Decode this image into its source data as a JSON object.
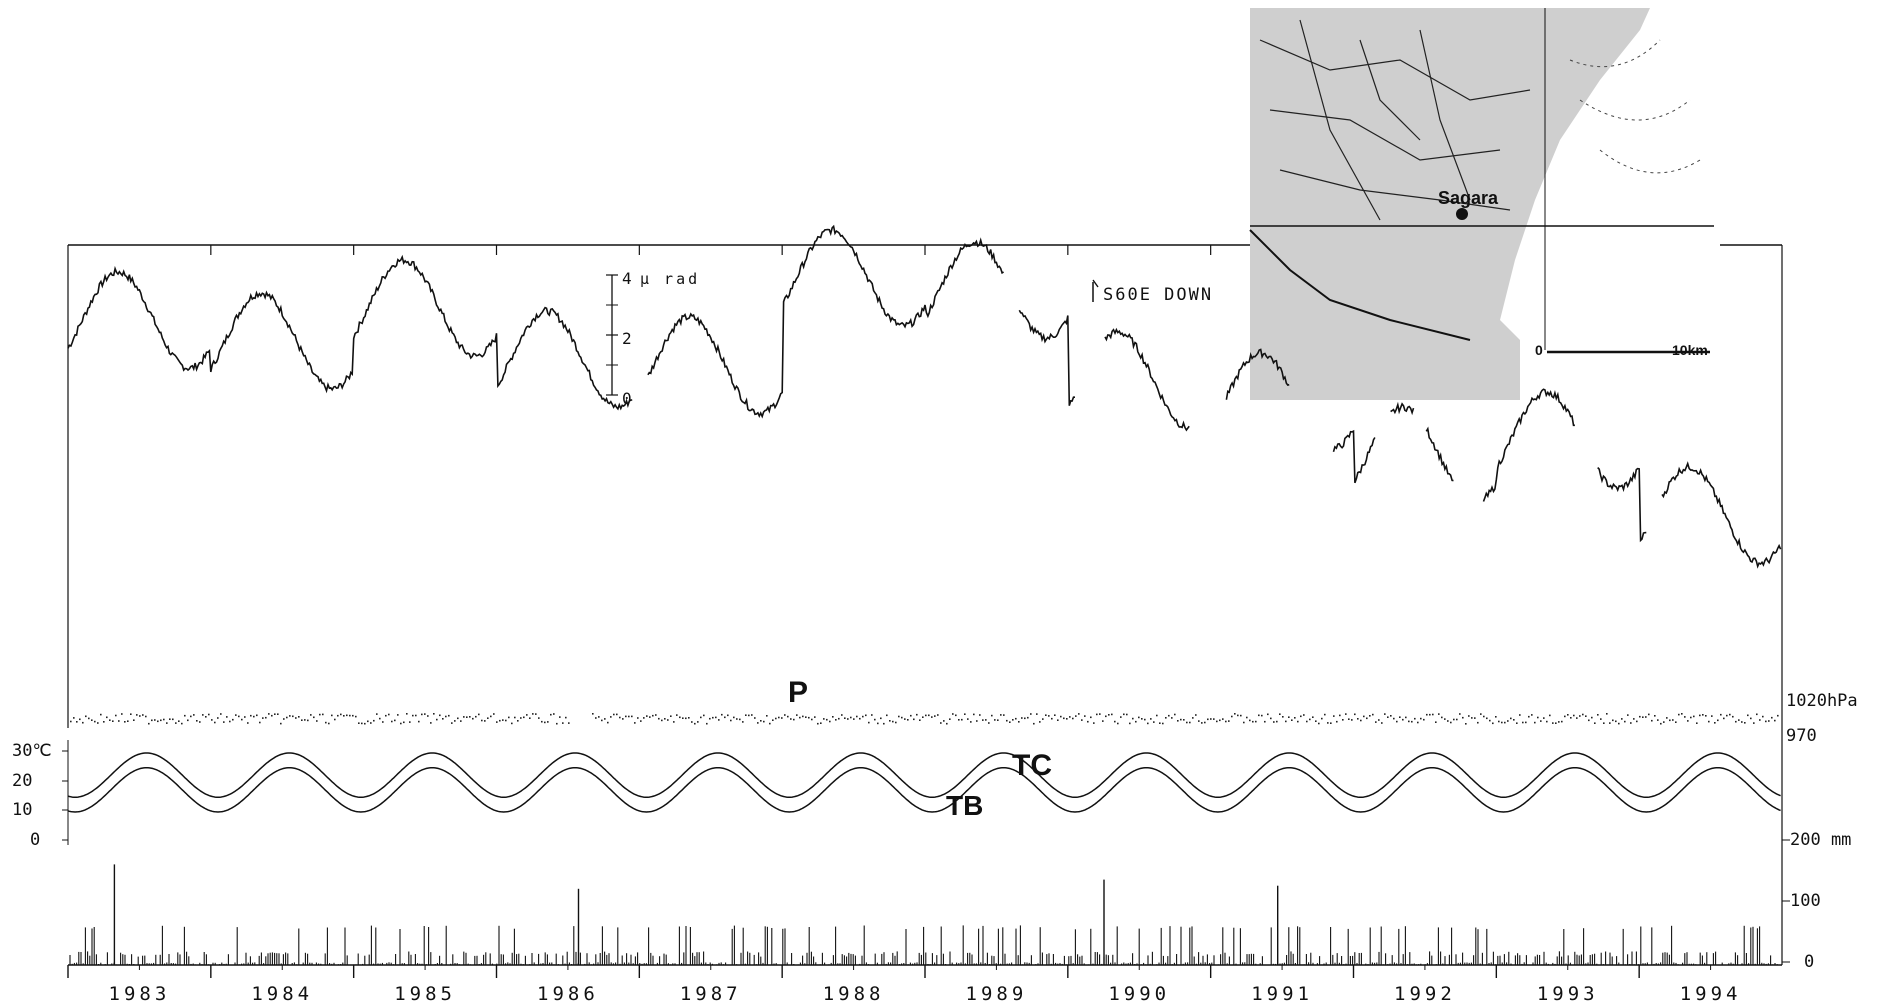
{
  "chart_data": {
    "type": "line",
    "x": [
      "1983",
      "1984",
      "1985",
      "1986",
      "1987",
      "1988",
      "1989",
      "1990",
      "1991",
      "1992",
      "1993",
      "1994"
    ],
    "panels": [
      {
        "id": "tilt",
        "label": "S60E DOWN",
        "scale": {
          "unit": "μ rad",
          "ticks": [
            "4",
            "2",
            "0"
          ]
        },
        "series": [
          {
            "name": "S60E DOWN",
            "values": [
              2.5,
              1.8,
              2.9,
              1.2,
              1.0,
              3.9,
              3.5,
              0.5,
              -0.2,
              -2.0,
              -1.5,
              -4.0
            ]
          }
        ]
      },
      {
        "id": "pressure",
        "label": "P",
        "ticks": [
          "1020hPa",
          "970"
        ],
        "series": [
          {
            "name": "P",
            "values": [
              1015,
              1015,
              1015,
              1015,
              1015,
              1015,
              1015,
              1015,
              1015,
              1015,
              1015,
              1015
            ]
          }
        ]
      },
      {
        "id": "temperature",
        "ticks": [
          "30℃",
          "20",
          "10",
          "0"
        ],
        "series": [
          {
            "name": "TC",
            "values": [
              22,
              22,
              22,
              22,
              22,
              22,
              22,
              22,
              22,
              22,
              22,
              22
            ]
          },
          {
            "name": "TB",
            "values": [
              17,
              17,
              17,
              17,
              17,
              17,
              17,
              17,
              17,
              17,
              17,
              17
            ]
          }
        ]
      },
      {
        "id": "precipitation",
        "type": "bar",
        "ticks": [
          "200 mm",
          "100",
          "0"
        ],
        "max_events": [
          {
            "year": "1983",
            "value": 165
          },
          {
            "year": "1990",
            "value": 140
          },
          {
            "year": "1991",
            "value": 130
          },
          {
            "year": "1986",
            "value": 125
          }
        ]
      }
    ],
    "inset_map": {
      "labels": [
        "Sagara",
        "0",
        "10km"
      ]
    }
  }
}
